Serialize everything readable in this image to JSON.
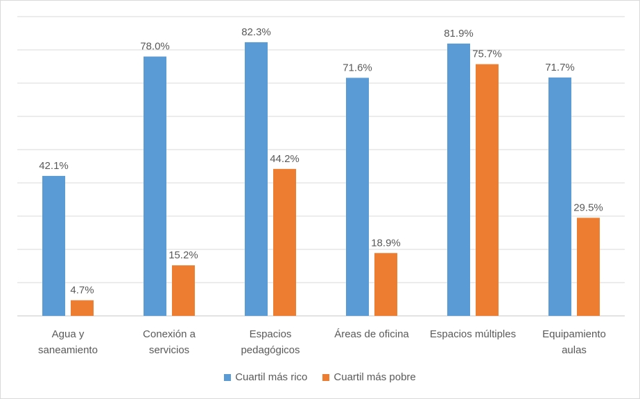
{
  "chart_data": {
    "type": "bar",
    "title": "",
    "xlabel": "",
    "ylabel": "",
    "ylim": [
      0,
      90
    ],
    "grid_step": 10,
    "grid": true,
    "legend_position": "bottom",
    "categories": [
      [
        "Agua y",
        "saneamiento"
      ],
      [
        "Conexión a",
        "servicios"
      ],
      [
        "Espacios",
        "pedagógicos"
      ],
      [
        "Áreas de oficina"
      ],
      [
        "Espacios múltiples"
      ],
      [
        "Equipamiento",
        "aulas"
      ]
    ],
    "series": [
      {
        "name": "Cuartil más rico",
        "color": "#5b9bd5",
        "values": [
          42.1,
          78.0,
          82.3,
          71.6,
          81.9,
          71.7
        ],
        "labels": [
          "42.1%",
          "78.0%",
          "82.3%",
          "71.6%",
          "81.9%",
          "71.7%"
        ]
      },
      {
        "name": "Cuartil más pobre",
        "color": "#ed7d31",
        "values": [
          4.7,
          15.2,
          44.2,
          18.9,
          75.7,
          29.5
        ],
        "labels": [
          "4.7%",
          "15.2%",
          "44.2%",
          "18.9%",
          "75.7%",
          "29.5%"
        ]
      }
    ]
  }
}
